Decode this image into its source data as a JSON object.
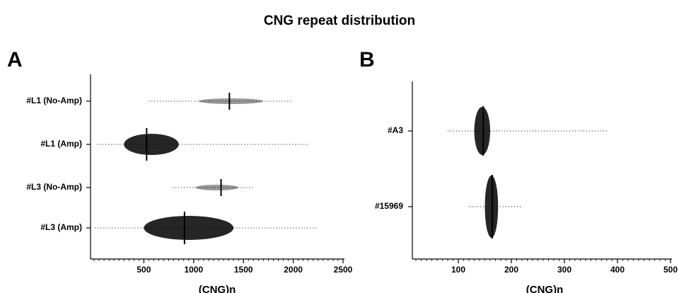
{
  "title": "CNG repeat distribution",
  "chart_data": [
    {
      "type": "strip",
      "panel": "A",
      "x_label": "(CNG)n",
      "categories": [
        "#L1 (No-Amp)",
        "#L1 (Amp)",
        "#L3 (No-Amp)",
        "#L3 (Amp)"
      ],
      "values": [
        1359,
        528,
        1275,
        908
      ],
      "ranges": [
        [
          549,
          1979
        ],
        [
          30,
          2150
        ],
        [
          790,
          1600
        ],
        [
          10,
          2250
        ]
      ],
      "cores": [
        [
          1050,
          1700
        ],
        [
          300,
          850
        ],
        [
          1020,
          1450
        ],
        [
          500,
          1400
        ]
      ],
      "xlim": [
        0,
        2500
      ],
      "xticks": [
        500,
        1000,
        1500,
        2000,
        2500
      ],
      "color": "#000000"
    },
    {
      "type": "strip",
      "panel": "B",
      "x_label": "(CNG)n",
      "categories": [
        "#A3",
        "#15969"
      ],
      "values": [
        147,
        164
      ],
      "ranges": [
        [
          80,
          380
        ],
        [
          120,
          220
        ]
      ],
      "cores": [
        [
          130,
          160
        ],
        [
          150,
          175
        ]
      ],
      "xlim": [
        0,
        500
      ],
      "xticks": [
        100,
        200,
        300,
        400,
        500
      ],
      "color": "#000000"
    }
  ]
}
